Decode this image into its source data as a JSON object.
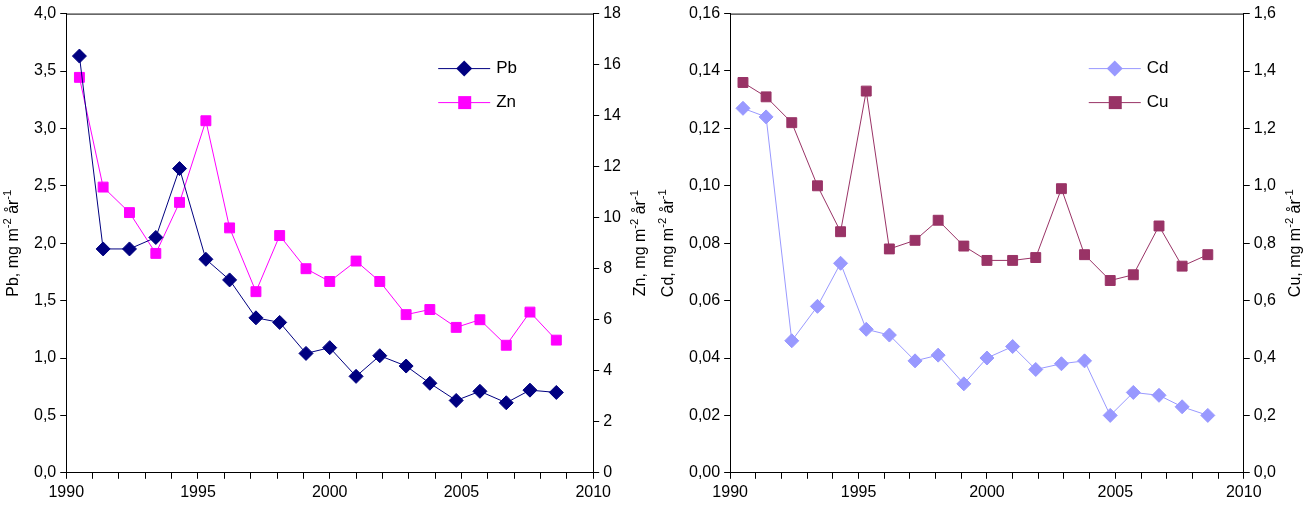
{
  "chart_data": [
    {
      "type": "line",
      "ylabel": "Pb, mg m$^{-2}$ år$^{-1}$",
      "y2label": "Zn, mg m$^{-2}$ år$^{-1}$",
      "x": [
        1990.5,
        1991.4,
        1992.4,
        1993.4,
        1994.3,
        1995.3,
        1996.2,
        1997.2,
        1998.1,
        1999.1,
        2000.0,
        2001.0,
        2001.9,
        2002.9,
        2003.8,
        2004.8,
        2005.7,
        2006.7,
        2007.6,
        2008.6
      ],
      "series": [
        {
          "name": "Pb",
          "color": "#000080",
          "marker": "diamond",
          "values": [
            3.63,
            1.95,
            1.95,
            2.05,
            2.65,
            1.86,
            1.68,
            1.35,
            1.31,
            1.04,
            1.09,
            0.84,
            1.02,
            0.93,
            0.78,
            0.63,
            0.71,
            0.61,
            0.72,
            0.7
          ]
        },
        {
          "name": "Zn",
          "color": "#ff00ff",
          "marker": "square",
          "axis": "y2",
          "values": [
            15.5,
            11.2,
            10.2,
            8.6,
            10.6,
            13.8,
            9.6,
            7.1,
            9.3,
            8.0,
            7.5,
            8.3,
            7.5,
            6.2,
            6.4,
            5.7,
            6.0,
            5.0,
            6.3,
            5.2
          ]
        }
      ],
      "xlim": [
        1990,
        2010
      ],
      "xticks": [
        1990,
        {
          "value": 1991,
          "label": null
        },
        {
          "value": 1992,
          "label": null
        },
        {
          "value": 1993,
          "label": null
        },
        {
          "value": 1994,
          "label": null
        },
        1995,
        {
          "value": 1996,
          "label": null
        },
        {
          "value": 1997,
          "label": null
        },
        {
          "value": 1998,
          "label": null
        },
        {
          "value": 1999,
          "label": null
        },
        2000,
        {
          "value": 2001,
          "label": null
        },
        {
          "value": 2002,
          "label": null
        },
        {
          "value": 2003,
          "label": null
        },
        {
          "value": 2004,
          "label": null
        },
        2005,
        {
          "value": 2006,
          "label": null
        },
        {
          "value": 2007,
          "label": null
        },
        {
          "value": 2008,
          "label": null
        },
        {
          "value": 2009,
          "label": null
        },
        2010
      ],
      "ylim": [
        0,
        4
      ],
      "yticks": [
        {
          "value": 0,
          "label": "0,0"
        },
        {
          "value": 0.5,
          "label": "0,5"
        },
        {
          "value": 1,
          "label": "1,0"
        },
        {
          "value": 1.5,
          "label": "1,5"
        },
        {
          "value": 2,
          "label": "2,0"
        },
        {
          "value": 2.5,
          "label": "2,5"
        },
        {
          "value": 3,
          "label": "3,0"
        },
        {
          "value": 3.5,
          "label": "3,5"
        },
        {
          "value": 4,
          "label": "4,0"
        }
      ],
      "y2lim": [
        0,
        18
      ],
      "y2ticks": [
        0,
        2,
        4,
        6,
        8,
        10,
        12,
        14,
        16,
        18
      ],
      "grid": false,
      "legend": "top right",
      "line_style": "solid"
    },
    {
      "type": "line",
      "ylabel": "Cd, mg m$^{-2}$ år$^{-1}$",
      "y2label": "Cu, mg m$^{-2}$ år$^{-1}$",
      "x": [
        1990.5,
        1991.4,
        1992.4,
        1993.4,
        1994.3,
        1995.3,
        1996.2,
        1997.2,
        1998.1,
        1999.1,
        2000.0,
        2001.0,
        2001.9,
        2002.9,
        2003.8,
        2004.8,
        2005.7,
        2006.7,
        2007.6,
        2008.6
      ],
      "series": [
        {
          "name": "Cd",
          "color": "#9999ff",
          "marker": "diamond",
          "values": [
            0.127,
            0.124,
            0.046,
            0.058,
            0.073,
            0.05,
            0.048,
            0.039,
            0.041,
            0.031,
            0.04,
            0.044,
            0.036,
            0.038,
            0.039,
            0.02,
            0.028,
            0.027,
            0.023,
            0.02
          ]
        },
        {
          "name": "Cu",
          "color": "#993366",
          "marker": "square",
          "axis": "y2",
          "values": [
            1.36,
            1.31,
            1.22,
            1.0,
            0.84,
            1.33,
            0.78,
            0.81,
            0.88,
            0.79,
            0.74,
            0.74,
            0.75,
            0.99,
            0.76,
            0.67,
            0.69,
            0.86,
            0.72,
            0.76
          ]
        }
      ],
      "xlim": [
        1990,
        2010
      ],
      "xticks": [
        1990,
        {
          "value": 1991,
          "label": null
        },
        {
          "value": 1992,
          "label": null
        },
        {
          "value": 1993,
          "label": null
        },
        {
          "value": 1994,
          "label": null
        },
        1995,
        {
          "value": 1996,
          "label": null
        },
        {
          "value": 1997,
          "label": null
        },
        {
          "value": 1998,
          "label": null
        },
        {
          "value": 1999,
          "label": null
        },
        2000,
        {
          "value": 2001,
          "label": null
        },
        {
          "value": 2002,
          "label": null
        },
        {
          "value": 2003,
          "label": null
        },
        {
          "value": 2004,
          "label": null
        },
        2005,
        {
          "value": 2006,
          "label": null
        },
        {
          "value": 2007,
          "label": null
        },
        {
          "value": 2008,
          "label": null
        },
        {
          "value": 2009,
          "label": null
        },
        2010
      ],
      "ylim": [
        0,
        0.16
      ],
      "yticks": [
        {
          "value": 0,
          "label": "0,00"
        },
        {
          "value": 0.02,
          "label": "0,02"
        },
        {
          "value": 0.04,
          "label": "0,04"
        },
        {
          "value": 0.06,
          "label": "0,06"
        },
        {
          "value": 0.08,
          "label": "0,08"
        },
        {
          "value": 0.1,
          "label": "0,10"
        },
        {
          "value": 0.12,
          "label": "0,12"
        },
        {
          "value": 0.14,
          "label": "0,14"
        },
        {
          "value": 0.16,
          "label": "0,16"
        }
      ],
      "y2lim": [
        0,
        1.6
      ],
      "y2ticks": [
        {
          "value": 0,
          "label": "0,0"
        },
        {
          "value": 0.2,
          "label": "0,2"
        },
        {
          "value": 0.4,
          "label": "0,4"
        },
        {
          "value": 0.6,
          "label": "0,6"
        },
        {
          "value": 0.8,
          "label": "0,8"
        },
        {
          "value": 1,
          "label": "1,0"
        },
        {
          "value": 1.2,
          "label": "1,2"
        },
        {
          "value": 1.4,
          "label": "1,4"
        },
        {
          "value": 1.6,
          "label": "1,6"
        }
      ],
      "grid": false,
      "legend": "top right",
      "line_style": "solid"
    }
  ]
}
